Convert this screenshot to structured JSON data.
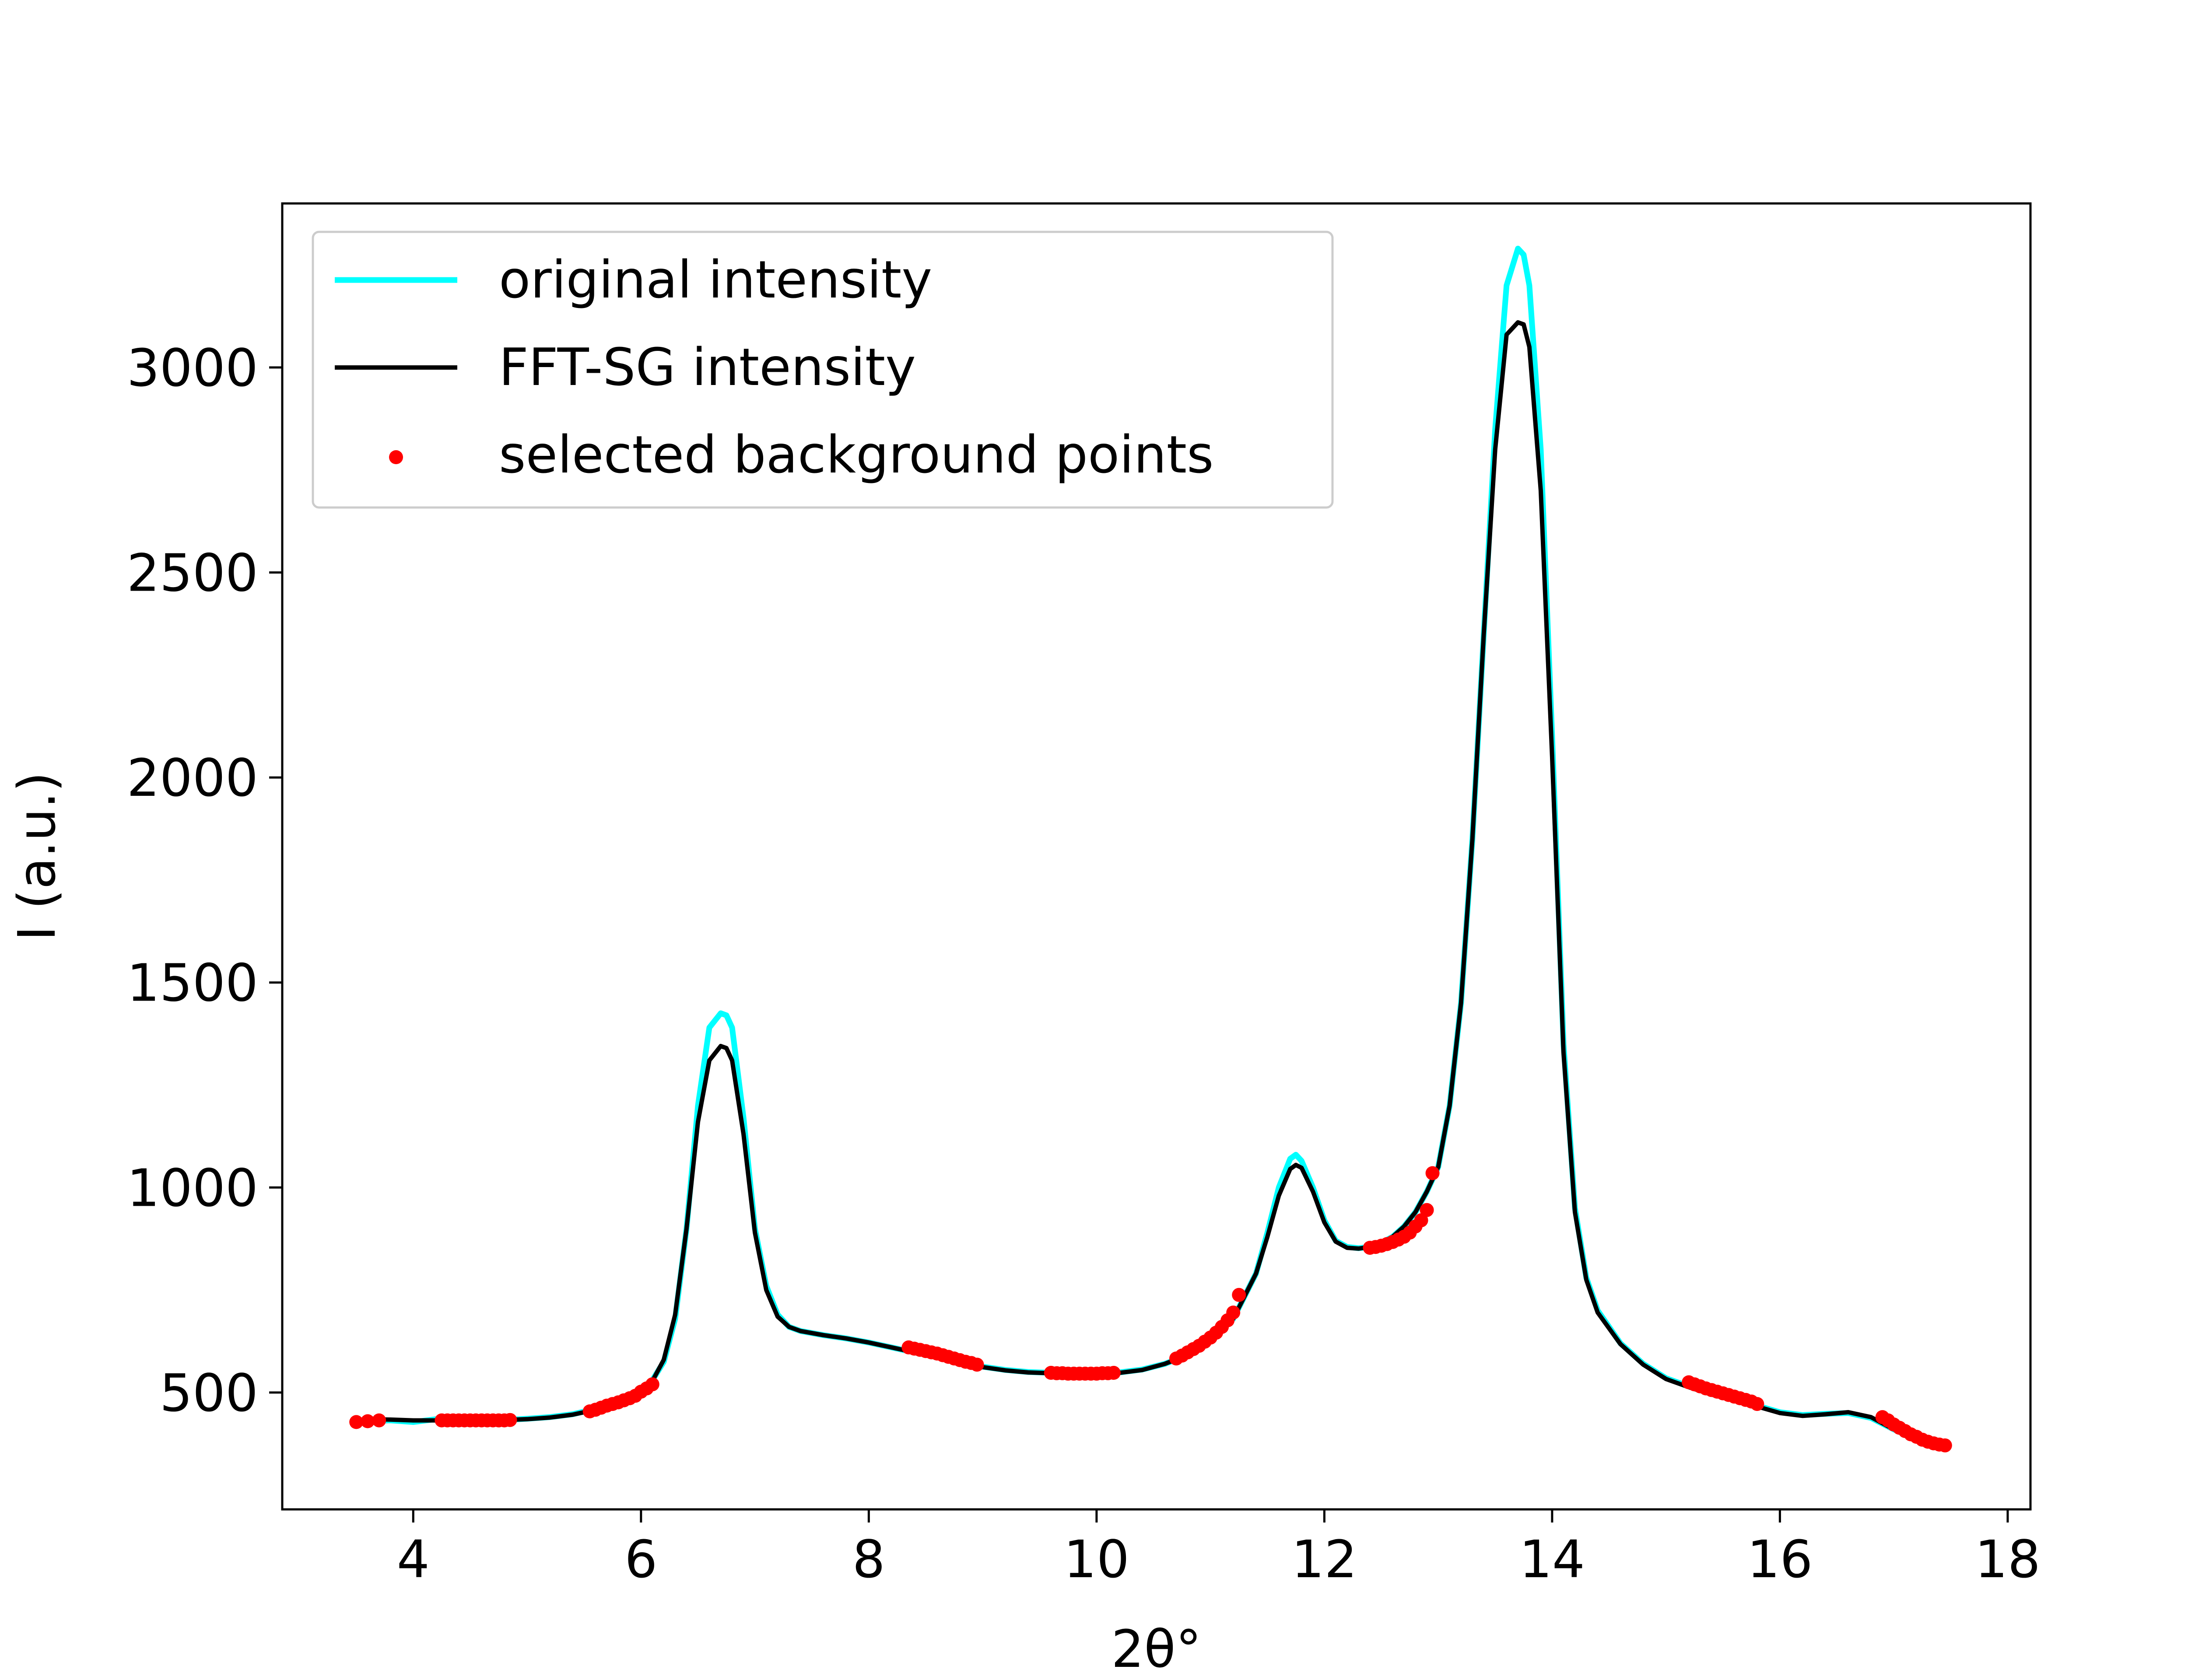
{
  "chart_data": {
    "type": "line",
    "title": "",
    "xlabel": "2θ°",
    "ylabel": "I (a.u.)",
    "xlim": [
      2.85,
      18.2
    ],
    "ylim": [
      215,
      3400
    ],
    "x_ticks": [
      4,
      6,
      8,
      10,
      12,
      14,
      16,
      18
    ],
    "y_ticks": [
      500,
      1000,
      1500,
      2000,
      2500,
      3000
    ],
    "grid": false,
    "legend_position": "top-left",
    "series": [
      {
        "name": "original intensity",
        "color": "#00ffff",
        "kind": "line",
        "x": [
          3.6,
          3.8,
          4.0,
          4.2,
          4.4,
          4.6,
          4.8,
          5.0,
          5.2,
          5.4,
          5.6,
          5.8,
          6.0,
          6.1,
          6.2,
          6.3,
          6.4,
          6.5,
          6.6,
          6.7,
          6.75,
          6.8,
          6.9,
          7.0,
          7.1,
          7.2,
          7.3,
          7.4,
          7.6,
          7.8,
          8.0,
          8.2,
          8.4,
          8.6,
          8.8,
          9.0,
          9.2,
          9.4,
          9.6,
          9.8,
          10.0,
          10.2,
          10.4,
          10.6,
          10.8,
          11.0,
          11.2,
          11.4,
          11.5,
          11.6,
          11.7,
          11.75,
          11.8,
          11.9,
          12.0,
          12.1,
          12.2,
          12.3,
          12.4,
          12.5,
          12.6,
          12.7,
          12.8,
          12.9,
          13.0,
          13.1,
          13.2,
          13.3,
          13.4,
          13.5,
          13.6,
          13.7,
          13.75,
          13.8,
          13.9,
          14.0,
          14.1,
          14.2,
          14.3,
          14.4,
          14.6,
          14.8,
          15.0,
          15.2,
          15.4,
          15.6,
          15.8,
          16.0,
          16.2,
          16.4,
          16.6,
          16.8,
          17.0,
          17.2,
          17.4
        ],
        "y": [
          430,
          432,
          428,
          435,
          433,
          432,
          433,
          436,
          440,
          447,
          460,
          478,
          505,
          530,
          575,
          680,
          900,
          1200,
          1390,
          1425,
          1420,
          1390,
          1170,
          900,
          760,
          690,
          660,
          650,
          640,
          632,
          622,
          610,
          598,
          587,
          573,
          563,
          555,
          550,
          548,
          547,
          547,
          549,
          556,
          570,
          592,
          625,
          680,
          790,
          890,
          1000,
          1070,
          1080,
          1065,
          1000,
          920,
          870,
          855,
          852,
          855,
          865,
          880,
          905,
          940,
          990,
          1050,
          1200,
          1450,
          1850,
          2350,
          2850,
          3200,
          3290,
          3275,
          3200,
          2800,
          2100,
          1350,
          950,
          780,
          700,
          620,
          570,
          535,
          515,
          497,
          483,
          468,
          452,
          445,
          448,
          450,
          438,
          410,
          385,
          372
        ]
      },
      {
        "name": "FFT-SG intensity",
        "color": "#000000",
        "kind": "line",
        "x": [
          3.6,
          3.8,
          4.0,
          4.2,
          4.4,
          4.6,
          4.8,
          5.0,
          5.2,
          5.4,
          5.6,
          5.8,
          6.0,
          6.1,
          6.2,
          6.3,
          6.4,
          6.5,
          6.6,
          6.7,
          6.75,
          6.8,
          6.9,
          7.0,
          7.1,
          7.2,
          7.3,
          7.4,
          7.6,
          7.8,
          8.0,
          8.2,
          8.4,
          8.6,
          8.8,
          9.0,
          9.2,
          9.4,
          9.6,
          9.8,
          10.0,
          10.2,
          10.4,
          10.6,
          10.8,
          11.0,
          11.2,
          11.4,
          11.5,
          11.6,
          11.7,
          11.75,
          11.8,
          11.9,
          12.0,
          12.1,
          12.2,
          12.3,
          12.4,
          12.5,
          12.6,
          12.7,
          12.8,
          12.9,
          13.0,
          13.1,
          13.2,
          13.3,
          13.4,
          13.5,
          13.6,
          13.7,
          13.75,
          13.8,
          13.9,
          14.0,
          14.1,
          14.2,
          14.3,
          14.4,
          14.6,
          14.8,
          15.0,
          15.2,
          15.4,
          15.6,
          15.8,
          16.0,
          16.2,
          16.4,
          16.6,
          16.8,
          17.0,
          17.2,
          17.4
        ],
        "y": [
          435,
          434,
          432,
          432,
          432,
          432,
          433,
          435,
          439,
          446,
          458,
          476,
          502,
          528,
          580,
          690,
          900,
          1160,
          1310,
          1345,
          1340,
          1310,
          1130,
          890,
          750,
          685,
          660,
          650,
          640,
          632,
          622,
          610,
          598,
          586,
          572,
          562,
          554,
          549,
          547,
          546,
          546,
          548,
          555,
          570,
          592,
          625,
          680,
          790,
          880,
          980,
          1045,
          1055,
          1048,
          990,
          915,
          868,
          853,
          851,
          855,
          865,
          880,
          905,
          940,
          990,
          1050,
          1200,
          1450,
          1850,
          2350,
          2800,
          3080,
          3110,
          3105,
          3050,
          2700,
          2050,
          1330,
          940,
          775,
          695,
          618,
          568,
          533,
          513,
          495,
          481,
          466,
          450,
          443,
          447,
          452,
          440,
          410,
          385,
          372
        ]
      },
      {
        "name": "selected background points",
        "color": "#ff0000",
        "kind": "scatter",
        "x": [
          3.5,
          3.6,
          3.7,
          4.25,
          4.3,
          4.35,
          4.4,
          4.45,
          4.5,
          4.55,
          4.6,
          4.65,
          4.7,
          4.75,
          4.8,
          4.85,
          5.55,
          5.6,
          5.65,
          5.7,
          5.75,
          5.8,
          5.85,
          5.9,
          5.95,
          6.0,
          6.05,
          6.1,
          8.35,
          8.4,
          8.45,
          8.5,
          8.55,
          8.6,
          8.65,
          8.7,
          8.75,
          8.8,
          8.85,
          8.9,
          8.95,
          9.6,
          9.65,
          9.7,
          9.75,
          9.8,
          9.85,
          9.9,
          9.95,
          10.0,
          10.05,
          10.1,
          10.15,
          10.7,
          10.75,
          10.8,
          10.85,
          10.9,
          10.95,
          11.0,
          11.05,
          11.1,
          11.15,
          11.2,
          11.25,
          12.4,
          12.45,
          12.5,
          12.55,
          12.6,
          12.65,
          12.7,
          12.75,
          12.8,
          12.85,
          12.9,
          12.95,
          15.2,
          15.25,
          15.3,
          15.35,
          15.4,
          15.45,
          15.5,
          15.55,
          15.6,
          15.65,
          15.7,
          15.75,
          15.8,
          16.9,
          16.95,
          17.0,
          17.05,
          17.1,
          17.15,
          17.2,
          17.25,
          17.3,
          17.35,
          17.4,
          17.45
        ],
        "y": [
          428,
          430,
          432,
          432,
          432,
          432,
          432,
          432,
          432,
          432,
          432,
          432,
          432,
          432,
          432,
          433,
          454,
          458,
          463,
          468,
          472,
          476,
          481,
          486,
          492,
          502,
          510,
          520,
          610,
          607,
          604,
          601,
          598,
          595,
          591,
          587,
          583,
          579,
          575,
          572,
          568,
          548,
          547,
          547,
          546,
          546,
          546,
          546,
          546,
          546,
          547,
          547,
          548,
          583,
          590,
          598,
          606,
          614,
          624,
          634,
          646,
          660,
          676,
          695,
          738,
          853,
          855,
          858,
          862,
          867,
          873,
          880,
          890,
          905,
          920,
          945,
          1035,
          525,
          520,
          515,
          510,
          506,
          502,
          498,
          494,
          490,
          486,
          482,
          478,
          472,
          440,
          432,
          422,
          414,
          406,
          398,
          392,
          385,
          380,
          376,
          373,
          371
        ]
      }
    ]
  }
}
